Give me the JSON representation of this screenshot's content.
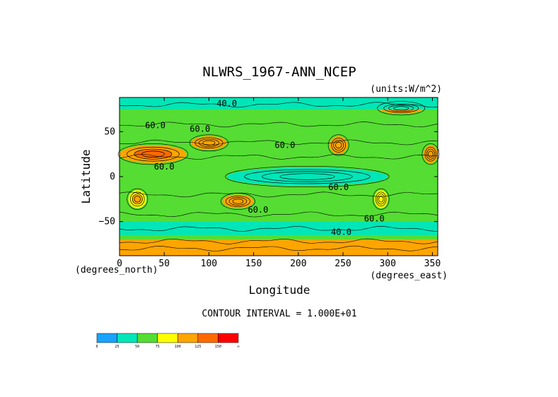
{
  "chart_data": {
    "type": "heatmap",
    "title": "NLWRS_1967-ANN_NCEP",
    "units": "(units:W/m^2)",
    "xlabel": "Longitude",
    "ylabel": "Latitude",
    "x_units": "(degrees_east)",
    "y_units": "(degrees_north)",
    "xlim": [
      0,
      356
    ],
    "ylim": [
      -88,
      88
    ],
    "x_ticks": [
      0,
      50,
      100,
      150,
      200,
      250,
      300,
      350
    ],
    "x_tick_labels": [
      "0",
      "50",
      "100",
      "150",
      "200",
      "250",
      "300",
      "350"
    ],
    "y_ticks": [
      50,
      0,
      -50
    ],
    "y_tick_labels": [
      "50",
      "0",
      "−50"
    ],
    "contour_interval": "CONTOUR INTERVAL = 1.000E+01",
    "contour_labels": [
      {
        "text": "40.0",
        "lon": 120,
        "lat": 78
      },
      {
        "text": "60.0",
        "lon": 40,
        "lat": 54
      },
      {
        "text": "60.0",
        "lon": 90,
        "lat": 50
      },
      {
        "text": "60.0",
        "lon": 185,
        "lat": 32
      },
      {
        "text": "60.0",
        "lon": 50,
        "lat": 8
      },
      {
        "text": "60.0",
        "lon": 245,
        "lat": -15
      },
      {
        "text": "60.0",
        "lon": 155,
        "lat": -40
      },
      {
        "text": "60.0",
        "lon": 285,
        "lat": -50
      },
      {
        "text": "40.0",
        "lon": 248,
        "lat": -65
      }
    ],
    "colorbar": {
      "levels": [
        0,
        25,
        50,
        75,
        100,
        125,
        150
      ],
      "tick_labels": [
        "0",
        "25",
        "50",
        "75",
        "100",
        "125",
        "150",
        "∞"
      ],
      "colors": [
        "#1aa3ff",
        "#00e6b8",
        "#55dd33",
        "#ffff00",
        "#ffa500",
        "#ff6a00",
        "#ff0000"
      ]
    },
    "features": [
      {
        "name": "sahara-arabia",
        "lon": [
          0,
          75
        ],
        "lat": [
          15,
          35
        ],
        "level": 100,
        "peak": 125
      },
      {
        "name": "tibet-gobi",
        "lon": [
          80,
          120
        ],
        "lat": [
          30,
          45
        ],
        "level": 100
      },
      {
        "name": "southern-africa",
        "lon": [
          10,
          30
        ],
        "lat": [
          -35,
          -15
        ],
        "level": 75,
        "peak": 100
      },
      {
        "name": "australia",
        "lon": [
          115,
          150
        ],
        "lat": [
          -35,
          -20
        ],
        "level": 100
      },
      {
        "name": "western-usa",
        "lon": [
          235,
          255
        ],
        "lat": [
          25,
          45
        ],
        "level": 100
      },
      {
        "name": "sonoran-west-africa-edge",
        "lon": [
          340,
          356
        ],
        "lat": [
          15,
          35
        ],
        "level": 100
      },
      {
        "name": "andes-atacama",
        "lon": [
          285,
          300
        ],
        "lat": [
          -35,
          -15
        ],
        "level": 75
      },
      {
        "name": "greenland",
        "lon": [
          290,
          340
        ],
        "lat": [
          70,
          82
        ],
        "level": 100
      },
      {
        "name": "warm-pool-east-pacific",
        "lon": [
          120,
          300
        ],
        "lat": [
          -10,
          10
        ],
        "level": 25
      },
      {
        "name": "arctic-ocean",
        "lon": [
          0,
          356
        ],
        "lat": [
          75,
          88
        ],
        "level": 25
      },
      {
        "name": "southern-ocean",
        "lon": [
          0,
          356
        ],
        "lat": [
          -65,
          -50
        ],
        "level": 25
      },
      {
        "name": "antarctica",
        "lon": [
          0,
          356
        ],
        "lat": [
          -88,
          -70
        ],
        "level": 100
      }
    ]
  }
}
